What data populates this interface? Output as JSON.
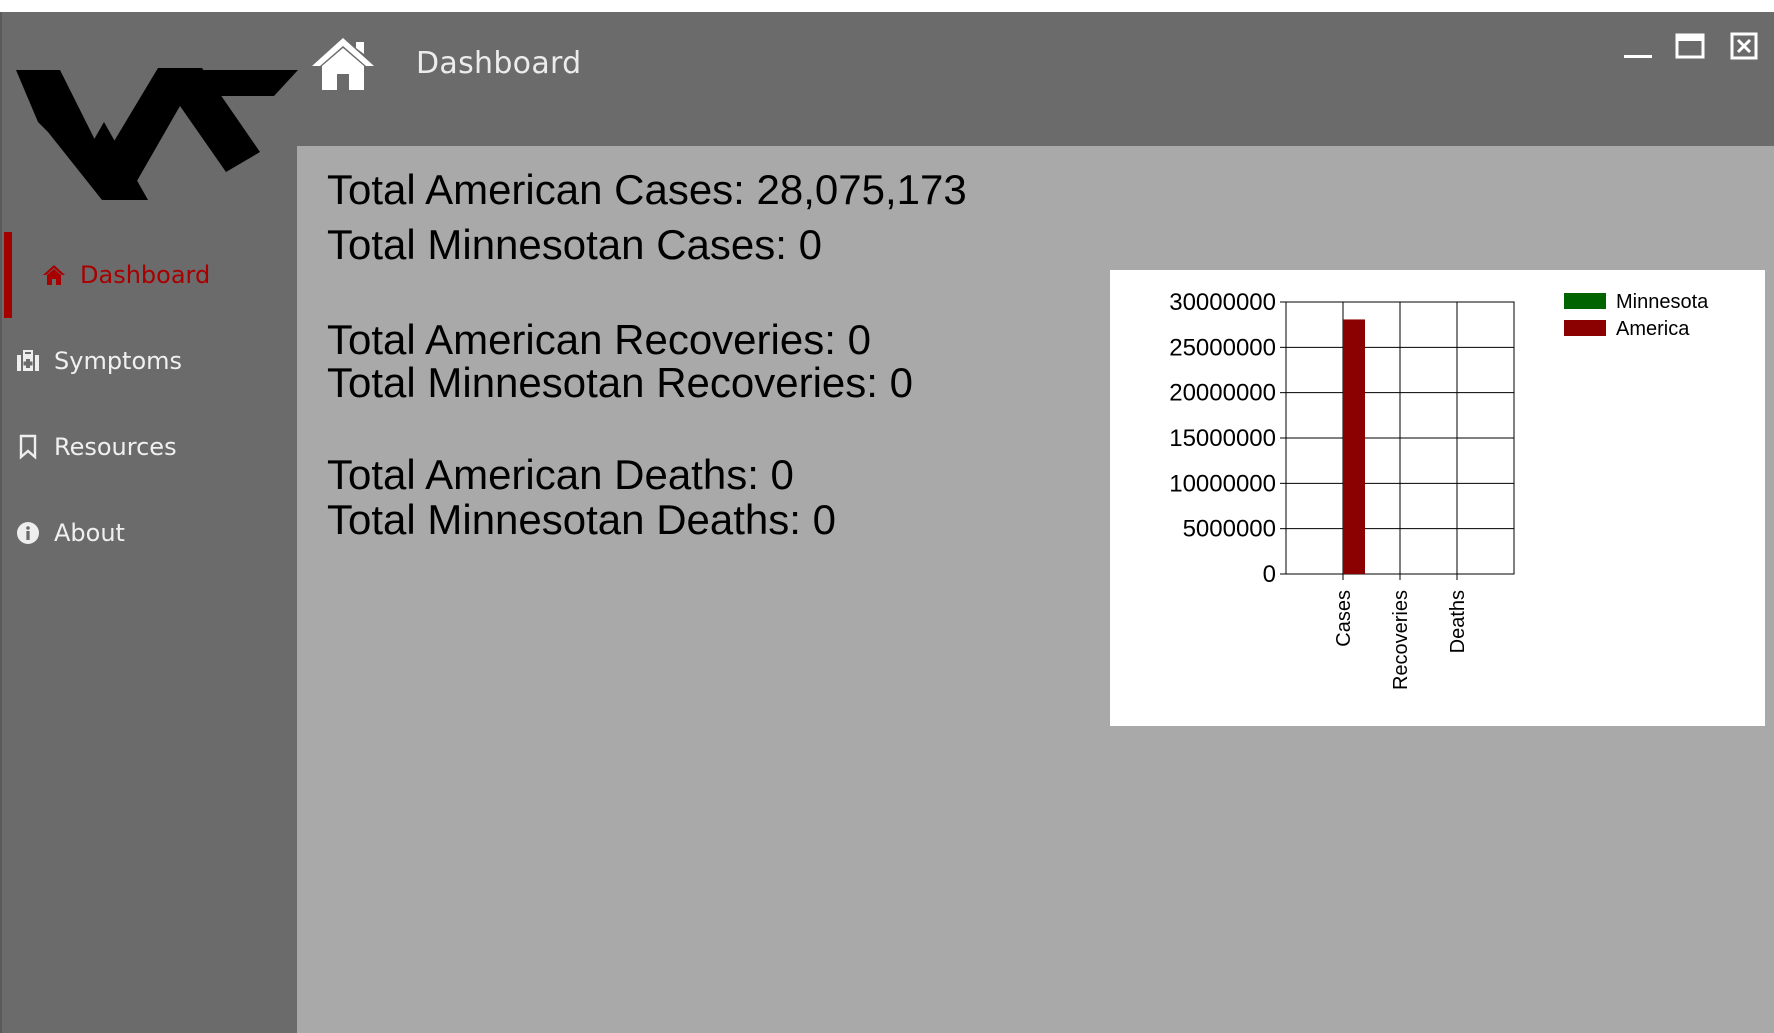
{
  "window": {
    "title": "Dashboard",
    "controls": {
      "minimize": "minimize-icon",
      "maximize": "maximize-icon",
      "close": "close-icon"
    },
    "logo": "ws-logo"
  },
  "sidebar": {
    "items": [
      {
        "label": "Dashboard",
        "icon": "home-icon",
        "active": true
      },
      {
        "label": "Symptoms",
        "icon": "medkit-icon",
        "active": false
      },
      {
        "label": "Resources",
        "icon": "bookmark-icon",
        "active": false
      },
      {
        "label": "About",
        "icon": "info-icon",
        "active": false
      }
    ]
  },
  "stats": {
    "american_cases": {
      "label": "Total American Cases:",
      "value": "28,075,173"
    },
    "minnesotan_cases": {
      "label": "Total Minnesotan Cases:",
      "value": "0"
    },
    "american_recoveries": {
      "label": "Total American Recoveries:",
      "value": "0"
    },
    "minnesotan_recoveries": {
      "label": "Total Minnesotan Recoveries:",
      "value": "0"
    },
    "american_deaths": {
      "label": "Total American Deaths:",
      "value": "0"
    },
    "minnesotan_deaths": {
      "label": "Total Minnesotan Deaths:",
      "value": "0"
    }
  },
  "colors": {
    "active_accent": "#a80000",
    "minnesota": "#006400",
    "america": "#8b0000"
  },
  "chart_data": {
    "type": "bar",
    "categories": [
      "Cases",
      "Recoveries",
      "Deaths"
    ],
    "series": [
      {
        "name": "Minnesota",
        "color": "#006400",
        "values": [
          0,
          0,
          0
        ]
      },
      {
        "name": "America",
        "color": "#8b0000",
        "values": [
          28075173,
          0,
          0
        ]
      }
    ],
    "yticks": [
      "30000000",
      "25000000",
      "20000000",
      "15000000",
      "10000000",
      "5000000",
      "0"
    ],
    "ylim": [
      0,
      30000000
    ],
    "grid": true,
    "legend": "top-right",
    "xtick_rotation": "vertical"
  }
}
